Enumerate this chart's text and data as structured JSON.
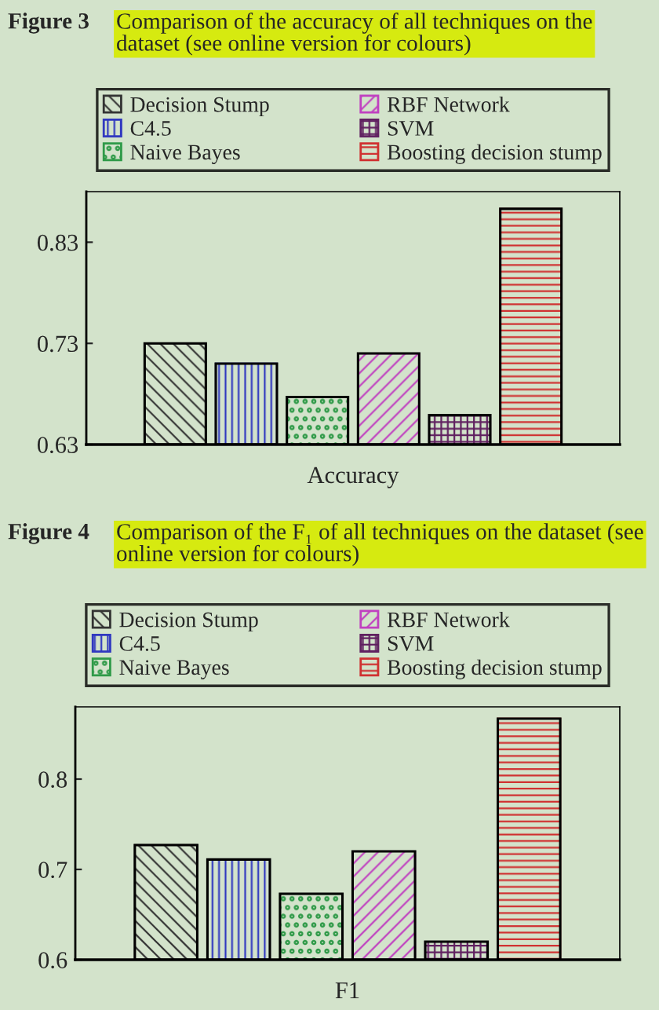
{
  "chart_data": [
    {
      "type": "bar",
      "title": "Figure 3",
      "subtitle": "Comparison of the accuracy of all techniques on the dataset (see online version for colours)",
      "categories": [
        "Accuracy"
      ],
      "series": [
        {
          "name": "Decision Stump",
          "color": "#333333",
          "values": [
            0.73
          ]
        },
        {
          "name": "C4.5",
          "color": "#3038c0",
          "values": [
            0.71
          ]
        },
        {
          "name": "Naive Bayes",
          "color": "#2f9a48",
          "values": [
            0.677
          ]
        },
        {
          "name": "RBF Network",
          "color": "#c040c0",
          "values": [
            0.72
          ]
        },
        {
          "name": "SVM",
          "color": "#602060",
          "values": [
            0.659
          ]
        },
        {
          "name": "Boosting decision stump",
          "color": "#d03030",
          "values": [
            0.863
          ]
        }
      ],
      "ylim": [
        0.63,
        0.88
      ],
      "yticks": [
        0.63,
        0.73,
        0.83
      ],
      "grid": false,
      "legend": "top"
    },
    {
      "type": "bar",
      "title": "Figure 4",
      "subtitle": "Comparison of the F₁ of all techniques on the dataset (see online version for colours)",
      "categories": [
        "F1"
      ],
      "series": [
        {
          "name": "Decision Stump",
          "color": "#333333",
          "values": [
            0.727
          ]
        },
        {
          "name": "C4.5",
          "color": "#3038c0",
          "values": [
            0.711
          ]
        },
        {
          "name": "Naive Bayes",
          "color": "#2f9a48",
          "values": [
            0.673
          ]
        },
        {
          "name": "RBF Network",
          "color": "#c040c0",
          "values": [
            0.72
          ]
        },
        {
          "name": "SVM",
          "color": "#602060",
          "values": [
            0.62
          ]
        },
        {
          "name": "Boosting decision stump",
          "color": "#d03030",
          "values": [
            0.867
          ]
        }
      ],
      "ylim": [
        0.6,
        0.88
      ],
      "yticks": [
        0.6,
        0.7,
        0.8
      ],
      "grid": false,
      "legend": "top"
    }
  ]
}
